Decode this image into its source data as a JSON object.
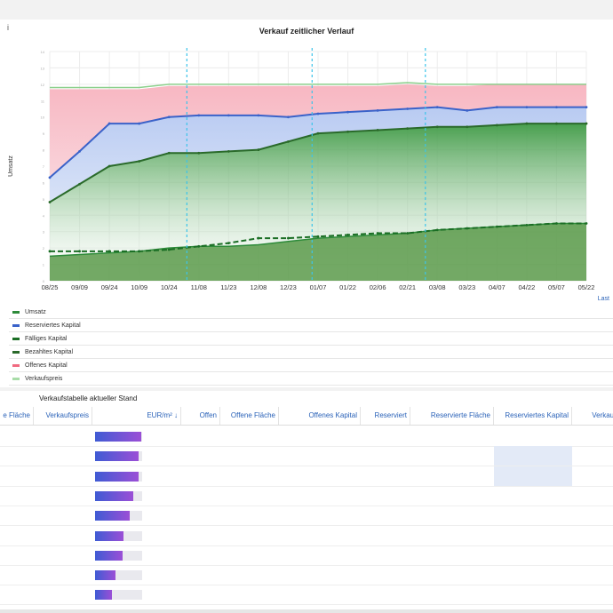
{
  "chart_panel": {
    "info_icon": "i",
    "title": "Verkauf zeitlicher Verlauf",
    "ylabel": "Umsatz",
    "last_label": "Last"
  },
  "chart_data": {
    "type": "area",
    "title": "Verkauf zeitlicher Verlauf",
    "ylabel": "Umsatz",
    "xlabel": "",
    "x_ticks": [
      "08/25",
      "09/09",
      "09/24",
      "10/09",
      "10/24",
      "11/08",
      "11/23",
      "12/08",
      "12/23",
      "01/07",
      "01/22",
      "02/06",
      "02/21",
      "03/08",
      "03/23",
      "04/07",
      "04/22",
      "05/07",
      "05/22"
    ],
    "y_ticks": [
      "0",
      "1",
      "2",
      "3",
      "4",
      "5",
      "6",
      "7",
      "8",
      "9",
      "10",
      "11",
      "12",
      "13",
      "14"
    ],
    "grid": true,
    "legend_position": "bottom",
    "vertical_markers": [
      "11/01",
      "01/01",
      "03/01"
    ],
    "series": [
      {
        "name": "Umsatz",
        "color": "#2e8b3a",
        "values": [
          1.5,
          1.6,
          1.7,
          1.8,
          2.0,
          2.1,
          2.1,
          2.2,
          2.4,
          2.6,
          2.7,
          2.8,
          2.9,
          3.1,
          3.2,
          3.3,
          3.4,
          3.5,
          3.5
        ]
      },
      {
        "name": "Reserviertes Kapital",
        "color": "#3a62c9",
        "values": [
          6.3,
          7.9,
          9.6,
          9.6,
          10.0,
          10.1,
          10.1,
          10.1,
          10.0,
          10.2,
          10.3,
          10.4,
          10.5,
          10.6,
          10.4,
          10.6,
          10.6,
          10.6,
          10.6
        ]
      },
      {
        "name": "Fälliges Kapital",
        "color": "#1b6e25",
        "values": [
          1.8,
          1.8,
          1.8,
          1.8,
          1.9,
          2.1,
          2.3,
          2.6,
          2.6,
          2.7,
          2.8,
          2.9,
          2.9,
          3.1,
          3.2,
          3.3,
          3.4,
          3.5,
          3.5
        ]
      },
      {
        "name": "Bezahltes Kapital",
        "color": "#2a6a2a",
        "values": [
          4.8,
          5.9,
          7.0,
          7.3,
          7.8,
          7.8,
          7.9,
          8.0,
          8.5,
          9.0,
          9.1,
          9.2,
          9.3,
          9.4,
          9.4,
          9.5,
          9.6,
          9.6,
          9.6
        ]
      },
      {
        "name": "Offenes Kapital",
        "color": "#f06a80",
        "values": [
          11.7,
          11.7,
          11.7,
          11.7,
          11.9,
          11.9,
          11.9,
          11.9,
          11.9,
          11.9,
          11.9,
          11.9,
          12.0,
          11.9,
          11.9,
          12.0,
          12.0,
          12.0,
          12.0
        ]
      },
      {
        "name": "Verkaufspreis",
        "color": "#8cd08c",
        "values": [
          11.8,
          11.8,
          11.8,
          11.8,
          12.0,
          12.0,
          12.0,
          12.0,
          12.0,
          12.0,
          12.0,
          12.0,
          12.1,
          12.0,
          12.0,
          12.0,
          12.0,
          12.0,
          12.0
        ]
      }
    ]
  },
  "legend": {
    "items": [
      {
        "label": "Umsatz",
        "color": "#2e8b3a"
      },
      {
        "label": "Reserviertes Kapital",
        "color": "#3a62c9"
      },
      {
        "label": "Fälliges Kapital",
        "color": "#1b6e25"
      },
      {
        "label": "Bezahltes Kapital",
        "color": "#2a6a2a"
      },
      {
        "label": "Offenes Kapital",
        "color": "#f06a80"
      },
      {
        "label": "Verkaufspreis",
        "color": "#a8dca8"
      }
    ]
  },
  "table": {
    "title": "Verkaufstabelle aktueller Stand",
    "headers": [
      "e Fläche",
      "Verkaufspreis",
      "EUR/m² ↓",
      "Offen",
      "Offene Fläche",
      "Offenes Kapital",
      "Reserviert",
      "Reservierte Fläche",
      "Reserviertes Kapital",
      "Verkaufte"
    ],
    "gauge_fractions": [
      0.99,
      0.93,
      0.92,
      0.82,
      0.73,
      0.6,
      0.58,
      0.43,
      0.36
    ],
    "highlighted_cells": [
      [
        1,
        8
      ],
      [
        2,
        8
      ]
    ]
  },
  "colors": {
    "accent": "#2a62b8",
    "purple": "#b14ad6",
    "gauge_start": "#3f5bd4",
    "gauge_end": "#9b4fd6"
  }
}
